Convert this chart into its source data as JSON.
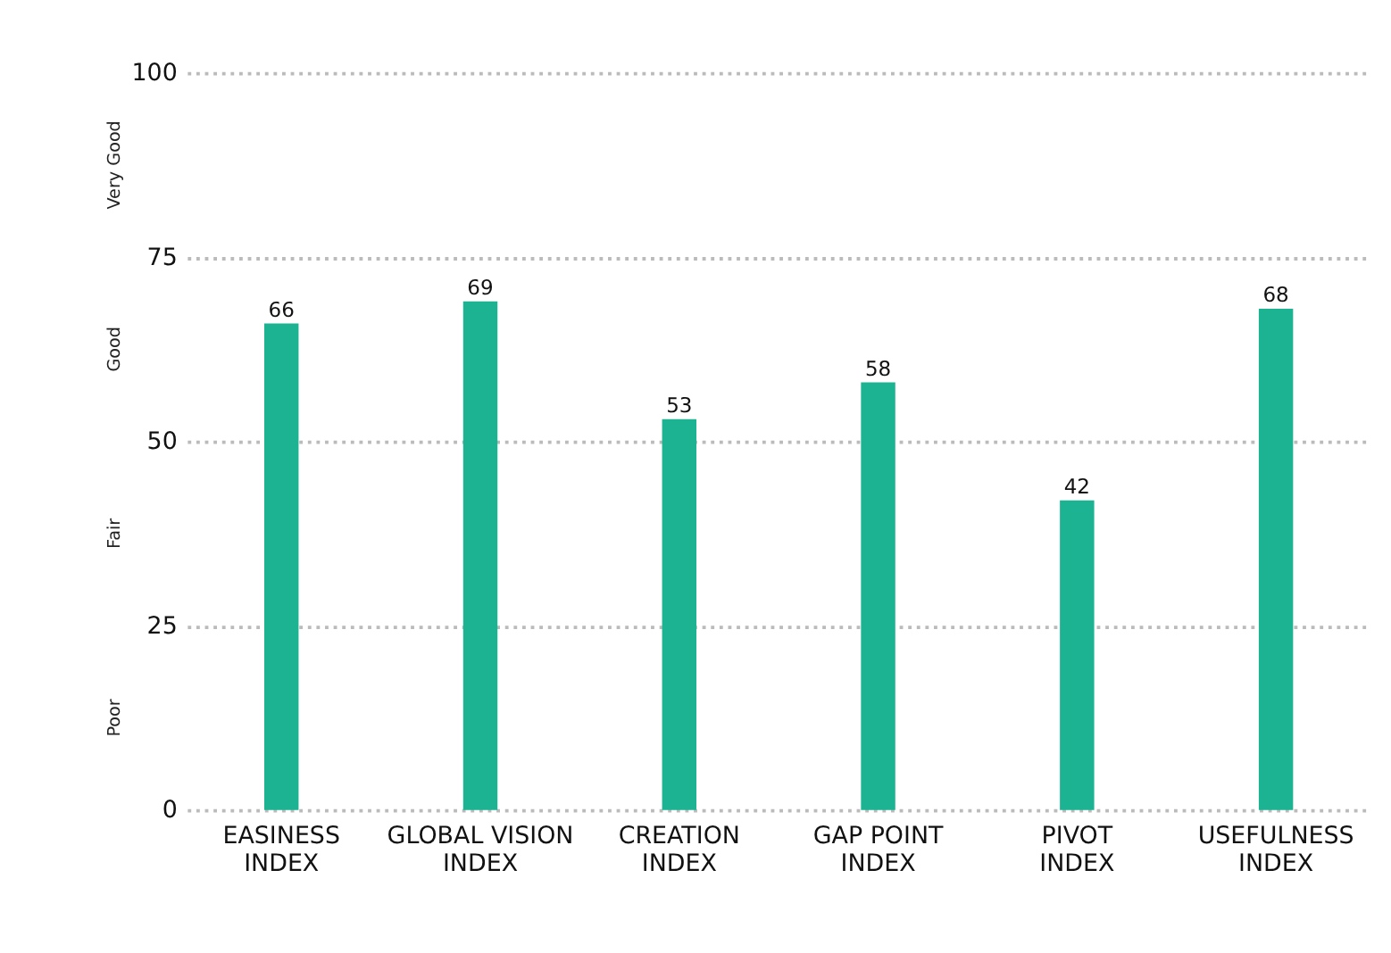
{
  "chart_data": {
    "type": "bar",
    "categories": [
      "EASINESS INDEX",
      "GLOBAL VISION INDEX",
      "CREATION INDEX",
      "GAP POINT INDEX",
      "PIVOT INDEX",
      "USEFULNESS INDEX"
    ],
    "values": [
      66,
      69,
      53,
      58,
      42,
      68
    ],
    "color": "#1bb391",
    "data_labels": true,
    "ylim": [
      0,
      100
    ],
    "yticks": [
      0,
      25,
      50,
      75,
      100
    ],
    "grid": "y",
    "annotations": [
      "Poor",
      "Fair",
      "Good",
      "Very Good"
    ]
  }
}
